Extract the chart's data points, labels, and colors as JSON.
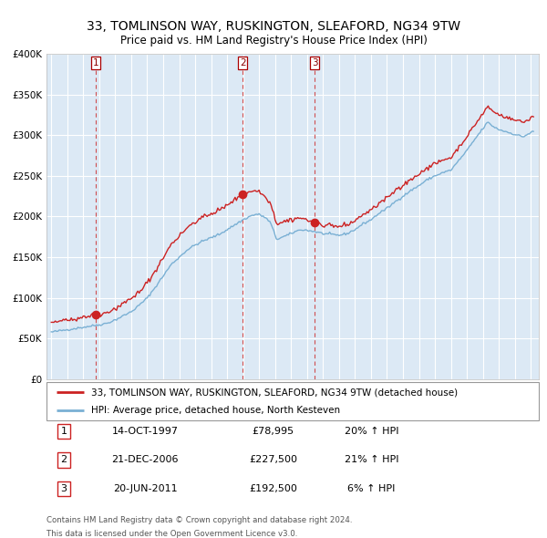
{
  "title": "33, TOMLINSON WAY, RUSKINGTON, SLEAFORD, NG34 9TW",
  "subtitle": "Price paid vs. HM Land Registry's House Price Index (HPI)",
  "legend_line1": "33, TOMLINSON WAY, RUSKINGTON, SLEAFORD, NG34 9TW (detached house)",
  "legend_line2": "HPI: Average price, detached house, North Kesteven",
  "transactions": [
    {
      "num": "1",
      "date": "14-OCT-1997",
      "price": "£78,995",
      "hpi": "20% ↑ HPI",
      "date_float": 1997.786,
      "price_val": 78995
    },
    {
      "num": "2",
      "date": "21-DEC-2006",
      "price": "£227,500",
      "hpi": "21% ↑ HPI",
      "date_float": 2006.972,
      "price_val": 227500
    },
    {
      "num": "3",
      "date": "20-JUN-2011",
      "price": "£192,500",
      "hpi": "6% ↑ HPI",
      "date_float": 2011.469,
      "price_val": 192500
    }
  ],
  "footer_line1": "Contains HM Land Registry data © Crown copyright and database right 2024.",
  "footer_line2": "This data is licensed under the Open Government Licence v3.0.",
  "ylim": [
    0,
    400000
  ],
  "yticks": [
    0,
    50000,
    100000,
    150000,
    200000,
    250000,
    300000,
    350000,
    400000
  ],
  "xlim_lo": 1994.7,
  "xlim_hi": 2025.5,
  "plot_bg": "#dce9f5",
  "red_line_color": "#cc2222",
  "blue_line_color": "#7ab0d4",
  "grid_color": "#ffffff",
  "vline_color": "#cc3333",
  "dot_color": "#cc2222",
  "hpi_anchors_t": [
    1995.0,
    1995.5,
    1996.0,
    1996.5,
    1997.0,
    1997.5,
    1998.0,
    1998.5,
    1999.0,
    1999.5,
    2000.0,
    2000.5,
    2001.0,
    2001.5,
    2002.0,
    2002.5,
    2003.0,
    2003.5,
    2004.0,
    2004.5,
    2005.0,
    2005.5,
    2006.0,
    2006.5,
    2007.0,
    2007.5,
    2007.9,
    2008.3,
    2008.7,
    2009.1,
    2009.5,
    2009.9,
    2010.3,
    2010.7,
    2011.0,
    2011.5,
    2012.0,
    2012.5,
    2013.0,
    2013.5,
    2014.0,
    2014.5,
    2015.0,
    2015.5,
    2016.0,
    2016.5,
    2017.0,
    2017.5,
    2018.0,
    2018.5,
    2019.0,
    2019.5,
    2020.0,
    2020.5,
    2021.0,
    2021.5,
    2022.0,
    2022.3,
    2022.7,
    2023.0,
    2023.5,
    2024.0,
    2024.5,
    2025.2
  ],
  "hpi_anchors_v": [
    58000,
    59500,
    61000,
    62500,
    64000,
    65500,
    67000,
    69000,
    73000,
    78000,
    83000,
    91000,
    100000,
    113000,
    127000,
    141000,
    150000,
    159000,
    165000,
    170000,
    174000,
    178000,
    184000,
    190000,
    196000,
    201000,
    203000,
    200000,
    193000,
    172000,
    175000,
    178000,
    182000,
    184000,
    183000,
    181500,
    179000,
    178000,
    177000,
    179000,
    184000,
    191000,
    196000,
    204000,
    210000,
    218000,
    225000,
    232000,
    238000,
    245000,
    250000,
    254000,
    257000,
    269000,
    281000,
    295000,
    308000,
    316000,
    310000,
    307000,
    304000,
    301000,
    298000,
    305000
  ]
}
